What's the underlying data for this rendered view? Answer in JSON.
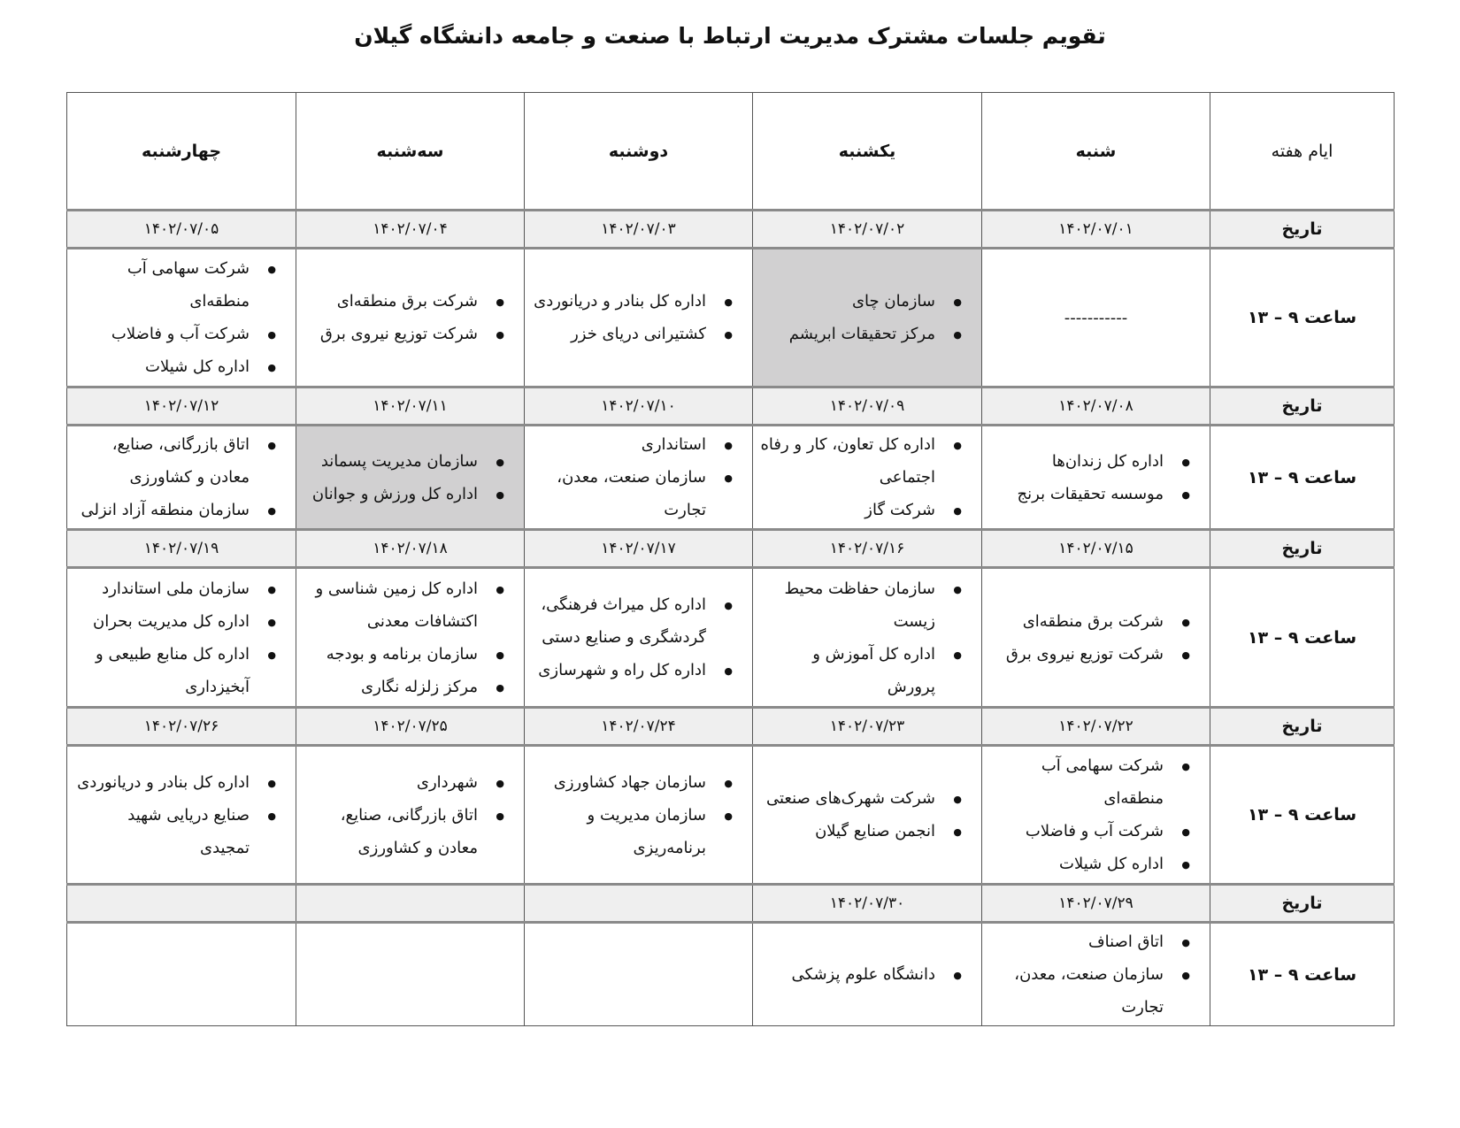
{
  "title": "تقویم جلسات مشترک مدیریت ارتباط با صنعت و جامعه دانشگاه گیلان",
  "header": {
    "label": "ایام هفته",
    "days": [
      "شنبه",
      "یکشنبه",
      "دوشنبه",
      "سه‌شنبه",
      "چهارشنبه"
    ]
  },
  "date_label": "تاریخ",
  "slot_label": "ساعت ۹ – ۱۳",
  "highlight_color": "#d1d0d1",
  "weeks": [
    {
      "dates": [
        "۱۴۰۲/۰۷/۰۱",
        "۱۴۰۲/۰۷/۰۲",
        "۱۴۰۲/۰۷/۰۳",
        "۱۴۰۲/۰۷/۰۴",
        "۱۴۰۲/۰۷/۰۵"
      ],
      "cells": [
        {
          "text": "-----------"
        },
        {
          "highlight": true,
          "items": [
            "سازمان چای",
            "مرکز تحقیقات ابریشم"
          ]
        },
        {
          "items": [
            "اداره کل بنادر و دریانوردی",
            "کشتیرانی دریای خزر"
          ]
        },
        {
          "items": [
            "شرکت برق منطقه‌ای",
            "شرکت توزیع نیروی برق"
          ]
        },
        {
          "items": [
            "شرکت سهامی آب منطقه‌ای",
            "شرکت آب و فاضلاب",
            "اداره کل شیلات"
          ]
        }
      ]
    },
    {
      "dates": [
        "۱۴۰۲/۰۷/۰۸",
        "۱۴۰۲/۰۷/۰۹",
        "۱۴۰۲/۰۷/۱۰",
        "۱۴۰۲/۰۷/۱۱",
        "۱۴۰۲/۰۷/۱۲"
      ],
      "cells": [
        {
          "items": [
            "اداره کل زندان‌ها",
            "موسسه تحقیقات برنج"
          ]
        },
        {
          "items": [
            "اداره کل تعاون، کار و رفاه اجتماعی",
            "شرکت گاز"
          ]
        },
        {
          "items": [
            "استانداری",
            "سازمان صنعت، معدن، تجارت"
          ]
        },
        {
          "highlight": true,
          "items": [
            "سازمان مدیریت پسماند",
            "اداره کل ورزش و جوانان"
          ]
        },
        {
          "items": [
            "اتاق بازرگانی، صنایع، معادن و کشاورزی",
            "سازمان منطقه آزاد انزلی"
          ]
        }
      ]
    },
    {
      "dates": [
        "۱۴۰۲/۰۷/۱۵",
        "۱۴۰۲/۰۷/۱۶",
        "۱۴۰۲/۰۷/۱۷",
        "۱۴۰۲/۰۷/۱۸",
        "۱۴۰۲/۰۷/۱۹"
      ],
      "cells": [
        {
          "items": [
            "شرکت برق منطقه‌ای",
            "شرکت توزیع نیروی برق"
          ]
        },
        {
          "items": [
            "سازمان حفاظت محیط زیست",
            "اداره کل آموزش و پرورش"
          ]
        },
        {
          "items": [
            "اداره کل میراث فرهنگی، گردشگری و صنایع دستی",
            "اداره کل راه و شهرسازی"
          ]
        },
        {
          "items": [
            "اداره کل زمین شناسی و اکتشافات معدنی",
            "سازمان برنامه و بودجه",
            "مرکز زلزله نگاری"
          ]
        },
        {
          "items": [
            "سازمان ملی استاندارد",
            "اداره کل مدیریت بحران",
            "اداره کل منابع طبیعی و آبخیزداری"
          ]
        }
      ]
    },
    {
      "dates": [
        "۱۴۰۲/۰۷/۲۲",
        "۱۴۰۲/۰۷/۲۳",
        "۱۴۰۲/۰۷/۲۴",
        "۱۴۰۲/۰۷/۲۵",
        "۱۴۰۲/۰۷/۲۶"
      ],
      "cells": [
        {
          "items": [
            "شرکت سهامی آب منطقه‌ای",
            "شرکت آب و فاضلاب",
            "اداره کل شیلات"
          ]
        },
        {
          "items": [
            "شرکت شهرک‌های صنعتی",
            "انجمن صنایع گیلان"
          ]
        },
        {
          "items": [
            "سازمان جهاد کشاورزی",
            "سازمان مدیریت و برنامه‌ریزی"
          ]
        },
        {
          "items": [
            "شهرداری",
            "اتاق بازرگانی، صنایع، معادن و کشاورزی"
          ]
        },
        {
          "items": [
            "اداره کل بنادر و دریانوردی",
            "صنایع دریایی شهید تمجیدی"
          ]
        }
      ]
    },
    {
      "dates": [
        "۱۴۰۲/۰۷/۲۹",
        "۱۴۰۲/۰۷/۳۰",
        "",
        "",
        ""
      ],
      "cells": [
        {
          "items": [
            "اتاق اصناف",
            "سازمان صنعت، معدن، تجارت"
          ]
        },
        {
          "items": [
            "دانشگاه علوم پزشکی"
          ]
        },
        {},
        {},
        {}
      ]
    }
  ]
}
